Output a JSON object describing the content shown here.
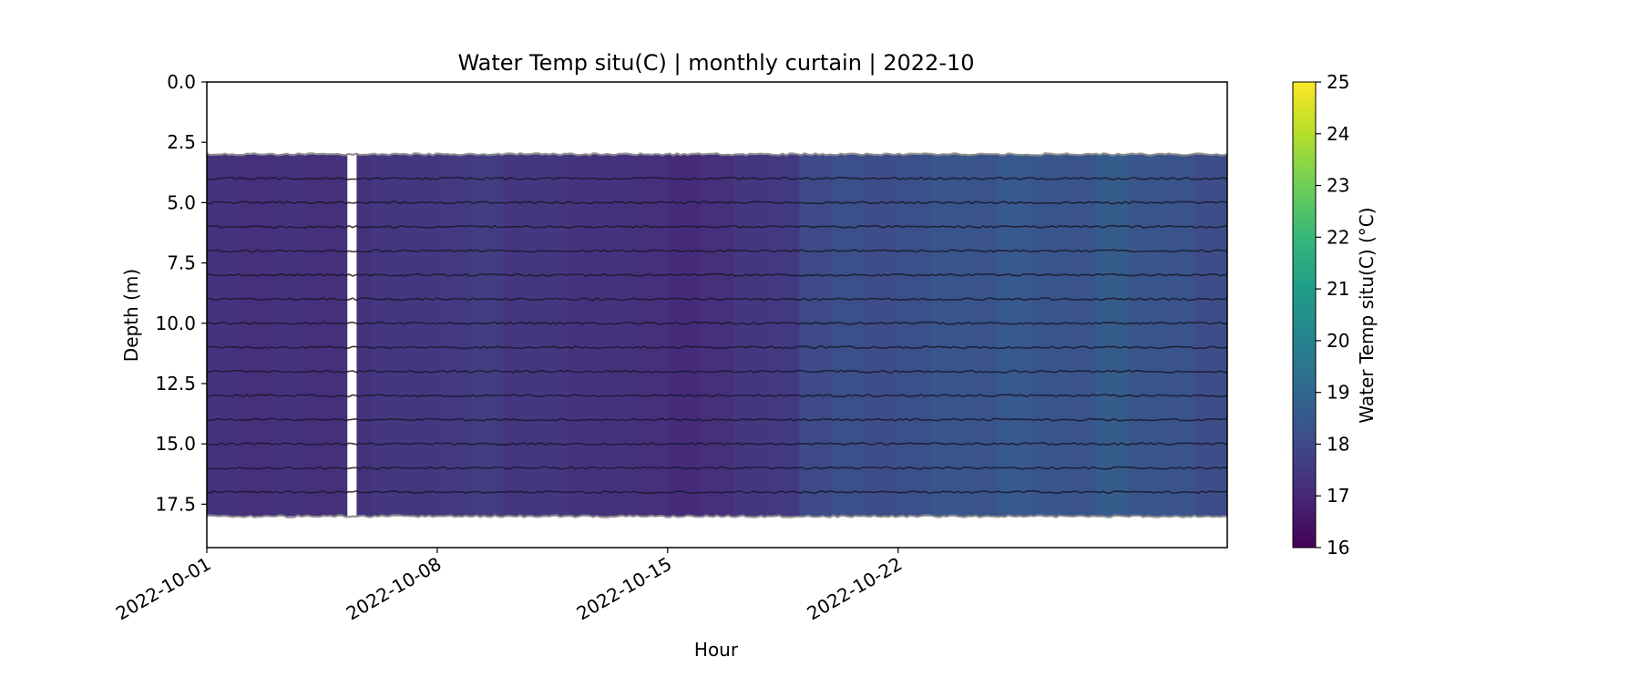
{
  "chart_data": {
    "type": "heatmap",
    "title": "Water Temp situ(C) | monthly curtain | 2022-10",
    "xlabel": "Hour",
    "ylabel": "Depth (m)",
    "x_range": [
      "2022-10-01",
      "2022-11-01"
    ],
    "x_ticks": [
      "2022-10-01",
      "2022-10-08",
      "2022-10-15",
      "2022-10-22"
    ],
    "ylim": [
      19.3,
      0.0
    ],
    "y_inverted": true,
    "y_ticks": [
      "0.0",
      "2.5",
      "5.0",
      "7.5",
      "10.0",
      "12.5",
      "15.0",
      "17.5"
    ],
    "y_tick_values": [
      0.0,
      2.5,
      5.0,
      7.5,
      10.0,
      12.5,
      15.0,
      17.5
    ],
    "depth_range": [
      3.0,
      18.0
    ],
    "sensor_depths": [
      3,
      4,
      5,
      6,
      7,
      8,
      9,
      10,
      11,
      12,
      13,
      14,
      15,
      16,
      17,
      18
    ],
    "colormap": "viridis",
    "colorbar": {
      "label": "Water Temp situ(C) (°C)",
      "range": [
        16,
        25
      ],
      "ticks": [
        "16",
        "17",
        "18",
        "19",
        "20",
        "21",
        "22",
        "23",
        "24",
        "25"
      ],
      "tick_values": [
        16,
        17,
        18,
        19,
        20,
        21,
        22,
        23,
        24,
        25
      ]
    },
    "temperature_profile_by_day": [
      {
        "day": 1,
        "temp": 17.3
      },
      {
        "day": 2,
        "temp": 17.2
      },
      {
        "day": 3,
        "temp": 17.3
      },
      {
        "day": 4,
        "temp": 17.2
      },
      {
        "day": 5,
        "temp": 17.3
      },
      {
        "day": 6,
        "temp": 17.4
      },
      {
        "day": 7,
        "temp": 17.4
      },
      {
        "day": 8,
        "temp": 17.5
      },
      {
        "day": 9,
        "temp": 17.6
      },
      {
        "day": 10,
        "temp": 17.4
      },
      {
        "day": 11,
        "temp": 17.4
      },
      {
        "day": 12,
        "temp": 17.3
      },
      {
        "day": 13,
        "temp": 17.3
      },
      {
        "day": 14,
        "temp": 17.2
      },
      {
        "day": 15,
        "temp": 17.1
      },
      {
        "day": 16,
        "temp": 17.2
      },
      {
        "day": 17,
        "temp": 17.4
      },
      {
        "day": 18,
        "temp": 17.5
      },
      {
        "day": 19,
        "temp": 18.0
      },
      {
        "day": 20,
        "temp": 18.2
      },
      {
        "day": 21,
        "temp": 18.1
      },
      {
        "day": 22,
        "temp": 18.2
      },
      {
        "day": 23,
        "temp": 18.4
      },
      {
        "day": 24,
        "temp": 18.3
      },
      {
        "day": 25,
        "temp": 18.5
      },
      {
        "day": 26,
        "temp": 18.4
      },
      {
        "day": 27,
        "temp": 18.3
      },
      {
        "day": 28,
        "temp": 18.6
      },
      {
        "day": 29,
        "temp": 18.4
      },
      {
        "day": 30,
        "temp": 18.3
      },
      {
        "day": 31,
        "temp": 18.1
      },
      {
        "day": 32,
        "temp": 17.9
      }
    ],
    "data_gaps_days": [
      [
        5.27,
        5.55
      ]
    ],
    "grid": false,
    "legend": "none"
  }
}
